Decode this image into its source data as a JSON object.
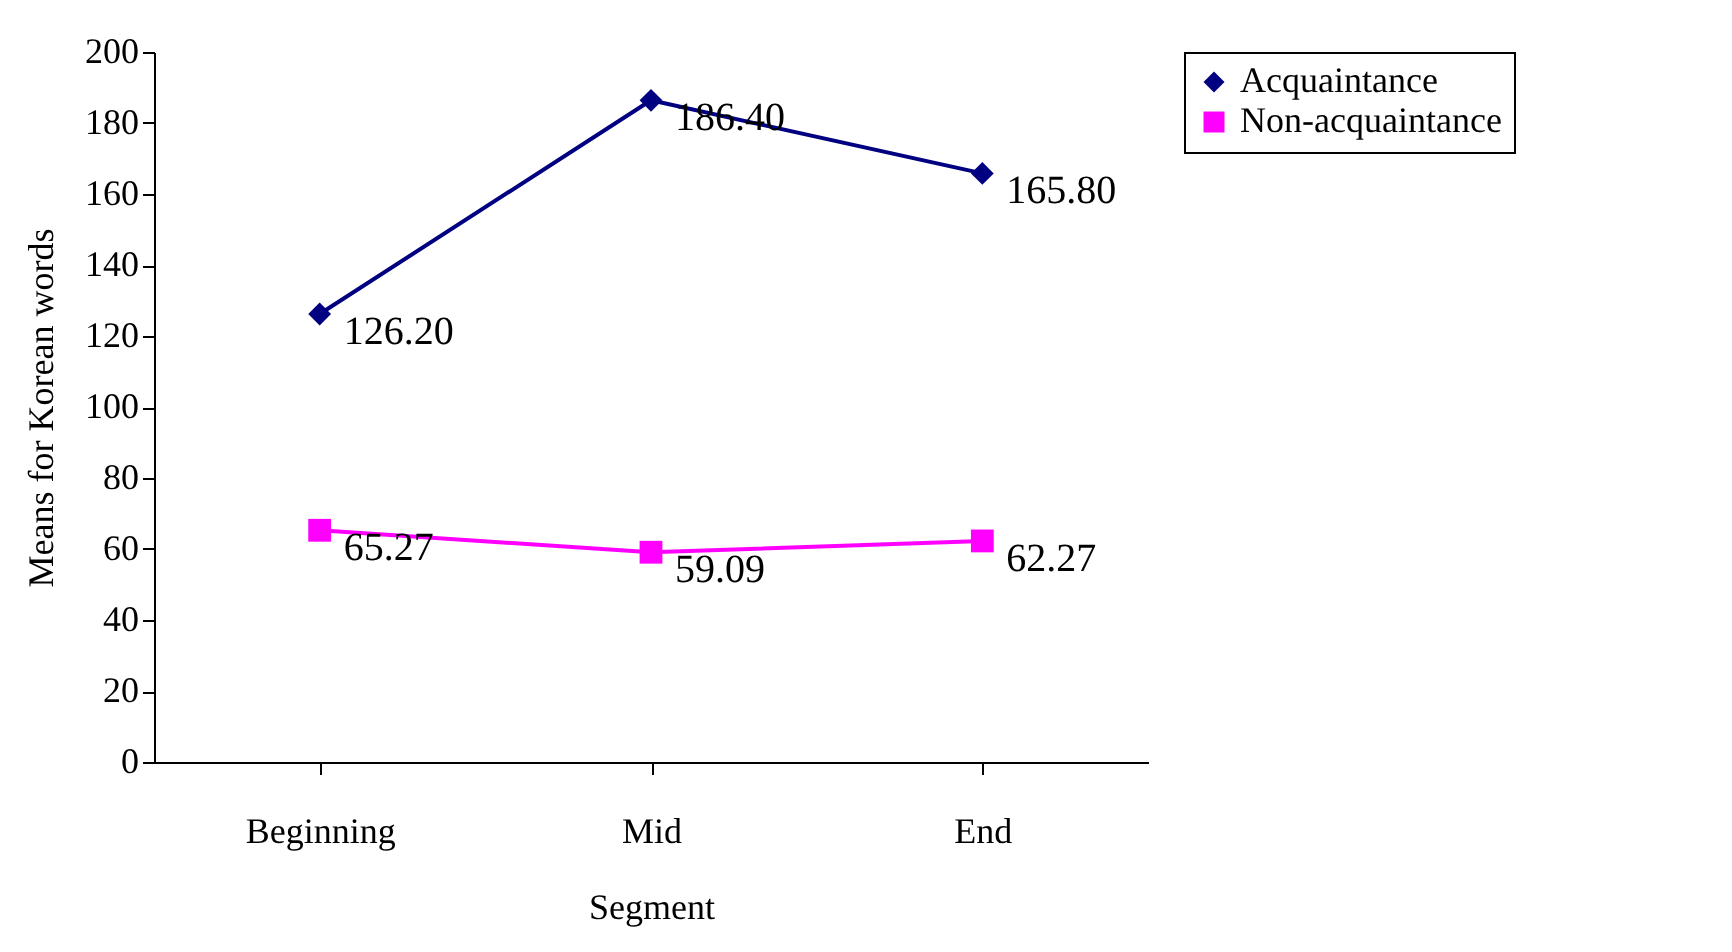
{
  "chart_data": {
    "type": "line",
    "xlabel": "Segment",
    "ylabel": "Means for Korean words",
    "categories": [
      "Beginning",
      "Mid",
      "End"
    ],
    "series": [
      {
        "name": "Acquaintance",
        "color": "#000080",
        "marker": "diamond",
        "values": [
          126.2,
          186.4,
          165.8
        ],
        "value_labels": [
          "126.20",
          "186.40",
          "165.80"
        ]
      },
      {
        "name": "Non-acquaintance",
        "color": "#ff00ff",
        "marker": "square",
        "values": [
          65.27,
          59.09,
          62.27
        ],
        "value_labels": [
          "65.27",
          "59.09",
          "62.27"
        ]
      }
    ],
    "ylim": [
      0,
      200
    ],
    "yticks": [
      0,
      20,
      40,
      60,
      80,
      100,
      120,
      140,
      160,
      180,
      200
    ],
    "grid": false,
    "legend": "right"
  }
}
